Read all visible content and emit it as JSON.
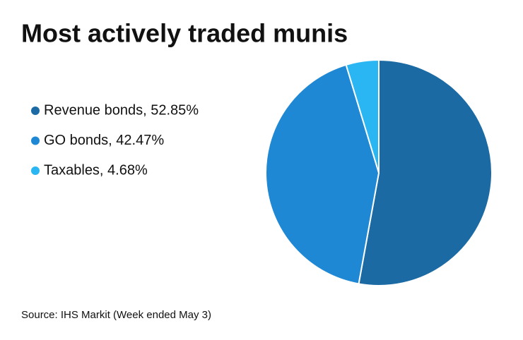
{
  "chart_data": {
    "type": "pie",
    "title": "Most actively traded munis",
    "categories": [
      "Revenue bonds, 52.85%",
      "GO bonds, 42.47%",
      "Taxables, 4.68%"
    ],
    "values": [
      52.85,
      42.47,
      4.68
    ],
    "colors": [
      "#1b6aa3",
      "#1e88d4",
      "#29b6f2"
    ],
    "source": "Source: IHS Markit (Week ended May 3)"
  }
}
